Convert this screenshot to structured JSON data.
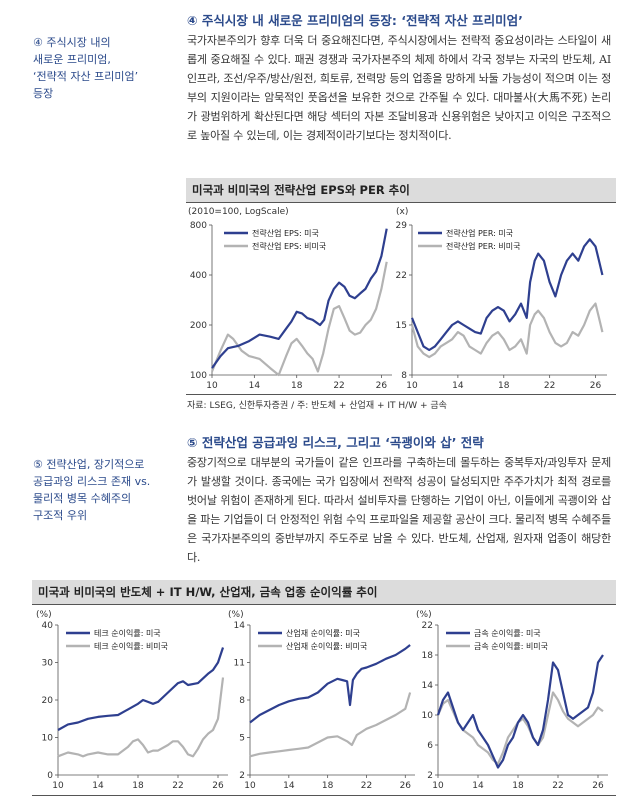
{
  "section4": {
    "sidebar": [
      "④ 주식시장 내의",
      "새로운 프리미엄,",
      "‘전략적 자산 프리미엄’",
      "등장"
    ],
    "title": "④ 주식시장 내 새로운 프리미엄의 등장: ‘전략적 자산 프리미엄’",
    "body": "국가자본주의가 향후 더욱 더 중요해진다면, 주식시장에서는 전략적 중요성이라는 스타일이 새롭게 중요해질 수 있다. 패권 경쟁과 국가자본주의 체제 하에서 각국 정부는 자국의 반도체, AI 인프라, 조선/우주/방산/원전, 희토류, 전력망 등의 업종을 망하게 놔둘 가능성이 적으며 이는 정부의 지원이라는 암묵적인 풋옵션을 보유한 것으로 간주될 수 있다. 대마불사(大馬不死) 논리가 광범위하게 확산된다면 해당 섹터의 자본 조달비용과 신용위험은 낮아지고 이익은 구조적으로 높아질 수 있는데, 이는 경제적이라기보다는 정치적이다."
  },
  "chart1": {
    "title": "미국과 비미국의 전략산업 EPS와 PER 추이",
    "left_note": "(2010=100, LogScale)",
    "right_note": "(x)",
    "source": "자료: LSEG, 신한투자증권 / 주: 반도체 + 산업재 + IT H/W + 금속"
  },
  "section5": {
    "sidebar": [
      "⑤ 전략산업, 장기적으로",
      "공급과잉 리스크 존재 vs.",
      "물리적 병목 수혜주의",
      "구조적 우위"
    ],
    "title": "⑤ 전략산업 공급과잉 리스크, 그리고 ‘곡괭이와 삽’ 전략",
    "body": "중장기적으로 대부분의 국가들이 같은 인프라를 구축하는데 몰두하는 중복투자/과잉투자 문제가 발생할 것이다. 종국에는 국가 입장에서 전략적 성공이 달성되지만 주주가치가 최적 경로를 벗어날 위험이 존재하게 된다. 따라서 설비투자를 단행하는 기업이 아닌, 이들에게 곡괭이와 삽을 파는 기업들이 더 안정적인 위험 수익 프로파일을 제공할 공산이 크다. 물리적 병목 수혜주들은 국가자본주의의 중반부까지 주도주로 남을 수 있다. 반도체, 산업재, 원자재 업종이 해당한다."
  },
  "chart2": {
    "title": "미국과 비미국의 반도체 + IT H/W, 산업재, 금속 업종 순이익률 추이"
  },
  "colors": {
    "us": "#2e3f8f",
    "nonus": "#b3b3b3",
    "accent": "#2b4a8b"
  },
  "chart_data": [
    {
      "type": "line",
      "ylabel": "(2010=100, LogScale)",
      "log": true,
      "ylim": [
        100,
        800
      ],
      "yticks": [
        100,
        200,
        400,
        800
      ],
      "xlim": [
        10,
        27
      ],
      "xticks": [
        10,
        14,
        18,
        22,
        26
      ],
      "legend": "top-left",
      "series": [
        {
          "name": "전략산업 EPS: 미국",
          "x": [
            10,
            10.8,
            11.5,
            12.5,
            13.5,
            14.5,
            15.5,
            16.3,
            17,
            17.5,
            18,
            18.5,
            19,
            19.5,
            20.2,
            20.6,
            21,
            21.5,
            22,
            22.5,
            23,
            23.5,
            24,
            24.5,
            25,
            25.5,
            26,
            26.5
          ],
          "values": [
            110,
            130,
            145,
            150,
            160,
            175,
            170,
            165,
            190,
            210,
            240,
            235,
            220,
            215,
            200,
            215,
            280,
            330,
            360,
            340,
            300,
            290,
            310,
            330,
            380,
            420,
            520,
            760
          ]
        },
        {
          "name": "전략산업 EPS: 비미국",
          "x": [
            10,
            10.8,
            11.5,
            12,
            12.8,
            13.5,
            14.5,
            15.5,
            16.3,
            17,
            17.5,
            18,
            18.5,
            19,
            19.5,
            20,
            20.5,
            21,
            21.5,
            22,
            22.5,
            23,
            23.5,
            24,
            24.5,
            25,
            25.5,
            26,
            26.5
          ],
          "values": [
            105,
            140,
            175,
            165,
            140,
            130,
            125,
            110,
            100,
            130,
            155,
            165,
            150,
            135,
            125,
            105,
            135,
            190,
            250,
            260,
            220,
            185,
            175,
            180,
            200,
            215,
            250,
            330,
            480
          ]
        }
      ]
    },
    {
      "type": "line",
      "ylabel": "(x)",
      "ylim": [
        8,
        29
      ],
      "yticks": [
        8,
        15,
        22,
        29
      ],
      "xlim": [
        10,
        27
      ],
      "xticks": [
        10,
        14,
        18,
        22,
        26
      ],
      "legend": "top-left",
      "series": [
        {
          "name": "전략산업 PER: 미국",
          "x": [
            10,
            10.5,
            11,
            11.5,
            12,
            12.5,
            13,
            13.5,
            14,
            14.5,
            15,
            15.5,
            16,
            16.5,
            17,
            17.5,
            18,
            18.5,
            19,
            19.5,
            20,
            20.3,
            20.7,
            21,
            21.5,
            22,
            22.5,
            23,
            23.5,
            24,
            24.5,
            25,
            25.5,
            26,
            26.3,
            26.6
          ],
          "values": [
            16,
            14,
            12,
            11.5,
            12,
            13,
            14,
            15,
            15.5,
            15,
            14.5,
            14,
            13.8,
            16,
            17,
            17.5,
            17,
            15.5,
            16.5,
            18,
            16,
            21,
            24,
            25,
            24,
            21,
            19,
            22,
            24,
            25,
            24,
            26,
            27,
            26,
            24,
            22
          ]
        },
        {
          "name": "전략산업 PER: 비미국",
          "x": [
            10,
            10.5,
            11,
            11.5,
            12,
            12.5,
            13,
            13.5,
            14,
            14.5,
            15,
            15.5,
            16,
            16.5,
            17,
            17.5,
            18,
            18.5,
            19,
            19.5,
            20,
            20.3,
            20.7,
            21,
            21.5,
            22,
            22.5,
            23,
            23.5,
            24,
            24.5,
            25,
            25.5,
            26,
            26.3,
            26.6
          ],
          "values": [
            15,
            12,
            11,
            10.5,
            11,
            12,
            12.5,
            13,
            14,
            13.5,
            12,
            11.5,
            11,
            12.5,
            13.5,
            14,
            13,
            11.5,
            12,
            13,
            11,
            15,
            16.5,
            17,
            16,
            14,
            12.5,
            12,
            12.5,
            14,
            13.5,
            15,
            17,
            18,
            16,
            14
          ]
        }
      ]
    },
    {
      "type": "line",
      "ylabel": "(%)",
      "ylim": [
        0,
        40
      ],
      "yticks": [
        0,
        10,
        20,
        30,
        40
      ],
      "xlim": [
        10,
        27
      ],
      "xticks": [
        10,
        14,
        18,
        22,
        26
      ],
      "legend": "top-left",
      "series": [
        {
          "name": "테크 순이익률: 미국",
          "x": [
            10,
            11,
            12,
            13,
            14,
            15,
            16,
            17,
            18,
            18.5,
            19,
            19.5,
            20,
            21,
            22,
            22.5,
            23,
            24,
            25,
            25.5,
            26,
            26.5
          ],
          "values": [
            12,
            13.5,
            14,
            15,
            15.5,
            15.8,
            16,
            17.5,
            19,
            20,
            19.5,
            19,
            19.5,
            22,
            24.5,
            25,
            24,
            24.5,
            27,
            28,
            30,
            34
          ]
        },
        {
          "name": "테크 순이익률: 비미국",
          "x": [
            10,
            11,
            12,
            12.5,
            13,
            14,
            15,
            16,
            17,
            17.5,
            18,
            18.5,
            19,
            19.5,
            20,
            21,
            21.5,
            22,
            22.5,
            23,
            23.5,
            24,
            24.5,
            25,
            25.5,
            26,
            26.5
          ],
          "values": [
            5,
            6,
            5.5,
            5,
            5.5,
            6,
            5.5,
            5.5,
            7.5,
            9,
            9.5,
            8,
            6,
            6.5,
            6.5,
            8,
            9,
            9,
            7.5,
            5.5,
            5,
            7,
            9.5,
            11,
            12,
            15,
            26
          ]
        }
      ]
    },
    {
      "type": "line",
      "ylabel": "(%)",
      "ylim": [
        2,
        14
      ],
      "yticks": [
        2,
        5,
        8,
        11,
        14
      ],
      "xlim": [
        10,
        27
      ],
      "xticks": [
        10,
        14,
        18,
        22,
        26
      ],
      "legend": "top-left",
      "series": [
        {
          "name": "산업재 순이익률: 미국",
          "x": [
            10,
            11,
            12,
            13,
            14,
            15,
            16,
            17,
            18,
            19,
            19.5,
            20,
            20.3,
            20.6,
            21,
            21.5,
            22,
            23,
            24,
            25,
            26,
            26.5
          ],
          "values": [
            6.2,
            6.8,
            7.2,
            7.6,
            7.9,
            8.1,
            8.2,
            8.6,
            9.3,
            9.7,
            9.6,
            9.5,
            7.6,
            9.6,
            10.1,
            10.5,
            10.6,
            10.9,
            11.3,
            11.6,
            12.1,
            12.4
          ]
        },
        {
          "name": "산업재 순이익률: 비미국",
          "x": [
            10,
            11,
            12,
            13,
            14,
            15,
            16,
            17,
            18,
            19,
            20,
            20.5,
            21,
            22,
            23,
            24,
            25,
            26,
            26.5
          ],
          "values": [
            3.5,
            3.7,
            3.8,
            3.9,
            4.0,
            4.1,
            4.2,
            4.6,
            5.0,
            5.1,
            4.7,
            4.4,
            5.2,
            5.7,
            6.0,
            6.4,
            6.8,
            7.3,
            8.6
          ]
        }
      ]
    },
    {
      "type": "line",
      "ylabel": "(%)",
      "ylim": [
        2,
        22
      ],
      "yticks": [
        2,
        6,
        10,
        14,
        18,
        22
      ],
      "xlim": [
        10,
        27
      ],
      "xticks": [
        10,
        14,
        18,
        22,
        26
      ],
      "legend": "top-left",
      "series": [
        {
          "name": "금속 순이익률: 미국",
          "x": [
            10,
            10.5,
            11,
            11.5,
            12,
            12.5,
            13,
            13.5,
            14,
            14.5,
            15,
            15.5,
            16,
            16.5,
            17,
            17.5,
            18,
            18.5,
            19,
            19.5,
            20,
            20.5,
            21,
            21.5,
            22,
            22.5,
            23,
            23.5,
            24,
            24.5,
            25,
            25.5,
            26,
            26.5
          ],
          "values": [
            10,
            12,
            13,
            11,
            9,
            8,
            9,
            10,
            8,
            7,
            6,
            4.5,
            3,
            4,
            6,
            7,
            9,
            10,
            9,
            7,
            6,
            8,
            12,
            17,
            16,
            13,
            10,
            9.5,
            10,
            10.5,
            11,
            13,
            17,
            18
          ]
        },
        {
          "name": "금속 순이익률: 비미국",
          "x": [
            10,
            10.5,
            11,
            11.5,
            12,
            12.5,
            13,
            13.5,
            14,
            14.5,
            15,
            15.5,
            16,
            16.5,
            17,
            17.5,
            18,
            18.5,
            19,
            19.5,
            20,
            20.5,
            21,
            21.5,
            22,
            22.5,
            23,
            23.5,
            24,
            24.5,
            25,
            25.5,
            26,
            26.5
          ],
          "values": [
            10,
            11.5,
            12,
            10.5,
            9,
            8,
            7.5,
            7,
            6,
            5.5,
            5,
            4,
            3.5,
            5,
            7,
            8,
            9,
            9.5,
            8.5,
            7,
            6,
            7,
            10,
            13,
            12,
            10.5,
            9.5,
            9,
            8.5,
            9,
            9.5,
            10,
            11,
            10.5
          ]
        }
      ]
    }
  ]
}
